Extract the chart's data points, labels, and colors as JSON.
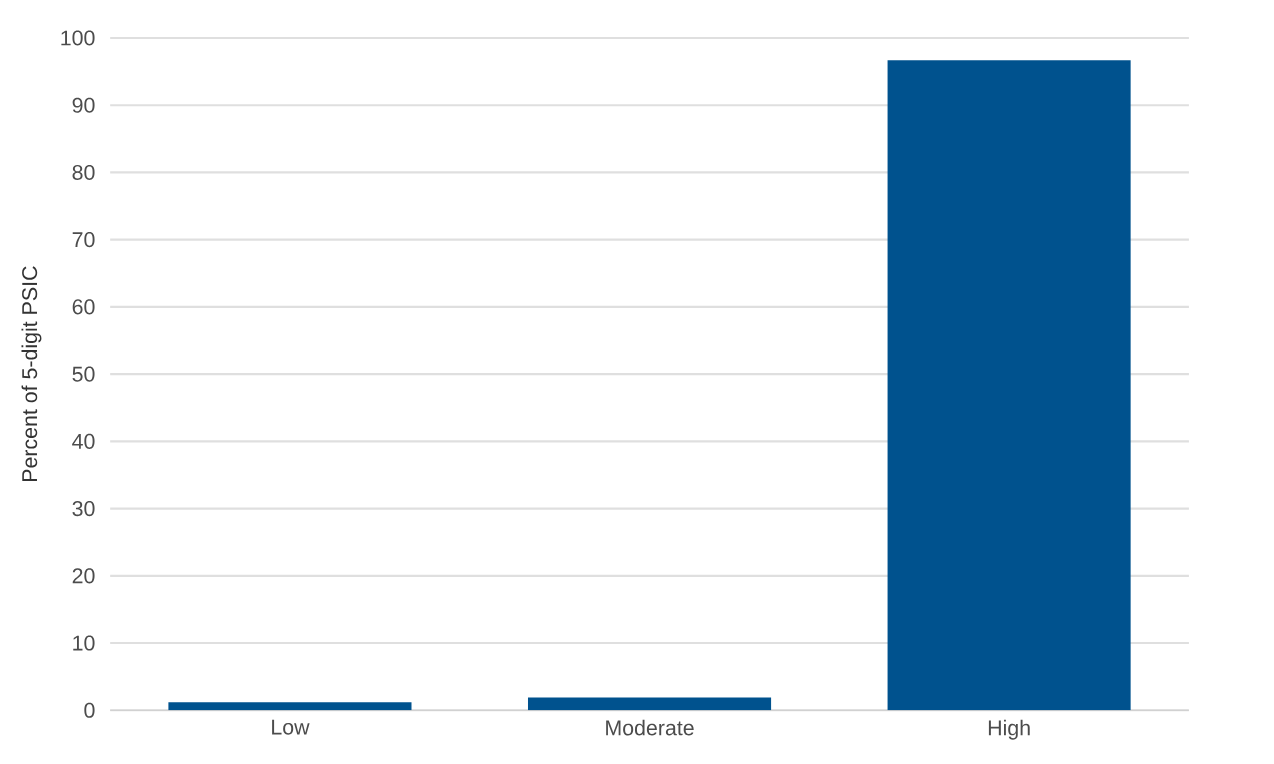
{
  "chart_data": {
    "type": "bar",
    "ylabel": "Percent of 5-digit PSIC",
    "categories": [
      "Low",
      "Moderate",
      "High"
    ],
    "values": [
      1.2,
      1.9,
      96.7
    ],
    "color": "#00528e",
    "ylim": [
      0,
      100
    ],
    "yticks": [
      0,
      10,
      20,
      30,
      40,
      50,
      60,
      70,
      80,
      90,
      100
    ],
    "grid": "y"
  }
}
